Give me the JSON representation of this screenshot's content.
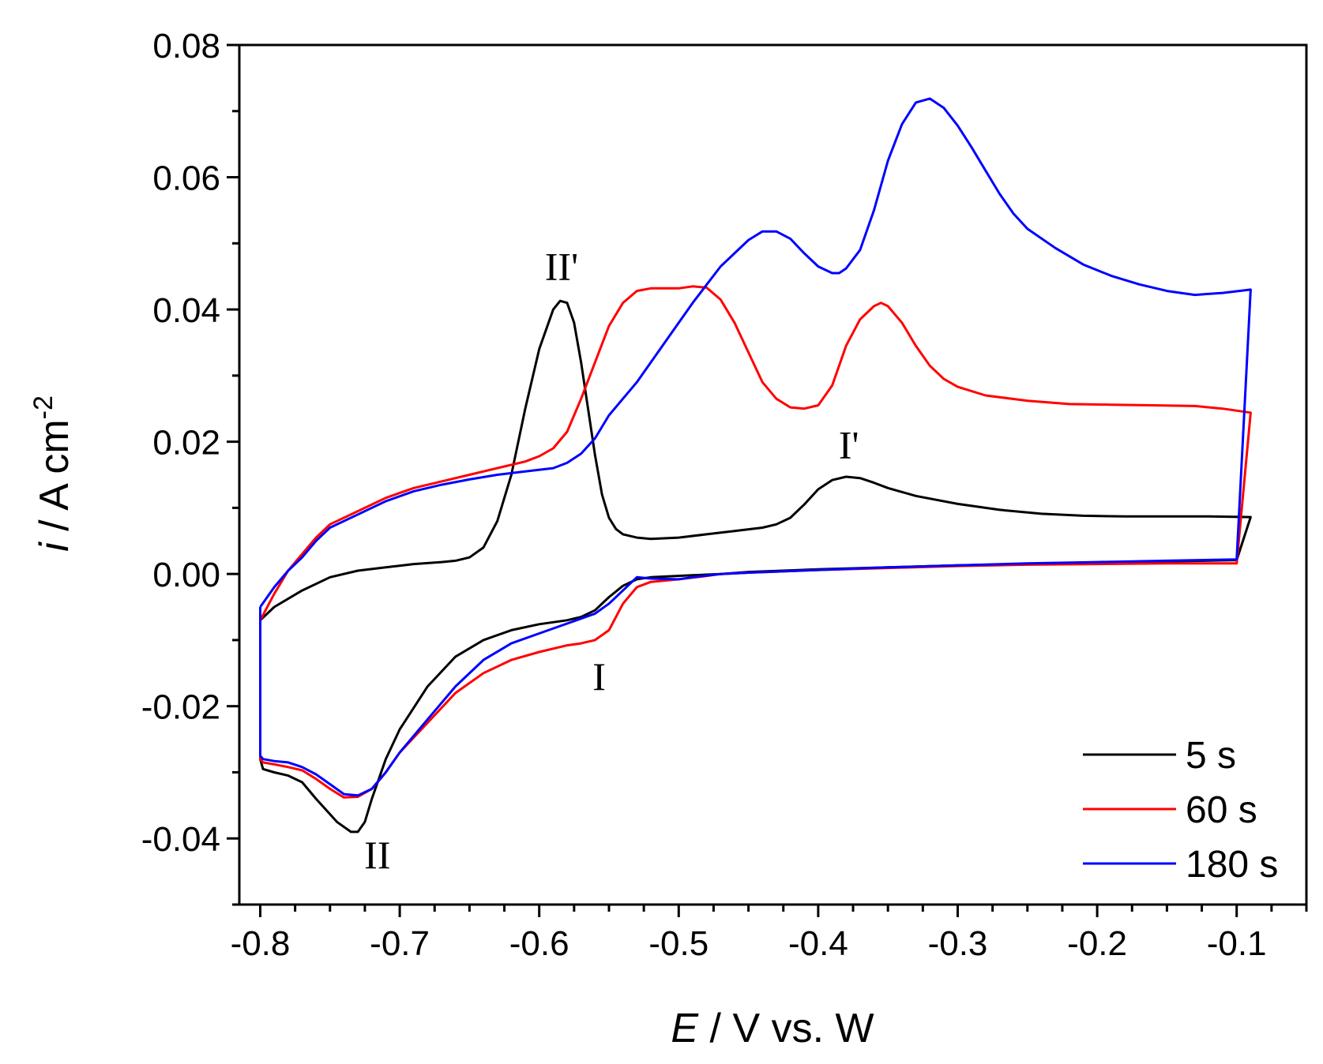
{
  "chart_data": {
    "type": "line",
    "xlabel": {
      "italic": "E",
      "rest": " / V vs. W"
    },
    "ylabel": {
      "italic": "i",
      "rest": " / A cm",
      "sup": "-2"
    },
    "xlim": [
      -0.815,
      -0.05
    ],
    "ylim": [
      -0.05,
      0.08
    ],
    "xticks": [
      -0.8,
      -0.7,
      -0.6,
      -0.5,
      -0.4,
      -0.3,
      -0.2,
      -0.1
    ],
    "xtick_labels": [
      "-0.8",
      "-0.7",
      "-0.6",
      "-0.5",
      "-0.4",
      "-0.3",
      "-0.2",
      "-0.1"
    ],
    "yticks": [
      -0.04,
      -0.02,
      0.0,
      0.02,
      0.04,
      0.06,
      0.08
    ],
    "ytick_labels": [
      "-0.04",
      "-0.02",
      "0.00",
      "0.02",
      "0.04",
      "0.06",
      "0.08"
    ],
    "x_minor_step": 0.025,
    "y_minor_step": 0.01,
    "legend_position": "bottom-right",
    "peak_annotations": [
      {
        "text": "II'",
        "x": -0.584,
        "y": 0.0445
      },
      {
        "text": "I'",
        "x": -0.378,
        "y": 0.0175
      },
      {
        "text": "I",
        "x": -0.557,
        "y": -0.0175
      },
      {
        "text": "II",
        "x": -0.716,
        "y": -0.0445
      }
    ],
    "series": [
      {
        "name": "5 s",
        "color": "#000000",
        "points": [
          [
            -0.8,
            -0.007
          ],
          [
            -0.79,
            -0.005
          ],
          [
            -0.77,
            -0.0025
          ],
          [
            -0.75,
            -0.0005
          ],
          [
            -0.73,
            0.0005
          ],
          [
            -0.71,
            0.001
          ],
          [
            -0.69,
            0.0015
          ],
          [
            -0.67,
            0.0018
          ],
          [
            -0.66,
            0.002
          ],
          [
            -0.65,
            0.0025
          ],
          [
            -0.64,
            0.004
          ],
          [
            -0.63,
            0.008
          ],
          [
            -0.62,
            0.015
          ],
          [
            -0.61,
            0.025
          ],
          [
            -0.6,
            0.034
          ],
          [
            -0.59,
            0.04
          ],
          [
            -0.585,
            0.0413
          ],
          [
            -0.58,
            0.041
          ],
          [
            -0.575,
            0.038
          ],
          [
            -0.57,
            0.032
          ],
          [
            -0.565,
            0.025
          ],
          [
            -0.56,
            0.018
          ],
          [
            -0.555,
            0.012
          ],
          [
            -0.55,
            0.0085
          ],
          [
            -0.545,
            0.0068
          ],
          [
            -0.54,
            0.006
          ],
          [
            -0.53,
            0.0055
          ],
          [
            -0.52,
            0.0053
          ],
          [
            -0.5,
            0.0055
          ],
          [
            -0.48,
            0.006
          ],
          [
            -0.46,
            0.0065
          ],
          [
            -0.44,
            0.007
          ],
          [
            -0.43,
            0.0075
          ],
          [
            -0.42,
            0.0085
          ],
          [
            -0.41,
            0.0105
          ],
          [
            -0.4,
            0.0128
          ],
          [
            -0.39,
            0.0142
          ],
          [
            -0.38,
            0.0147
          ],
          [
            -0.37,
            0.0145
          ],
          [
            -0.36,
            0.0138
          ],
          [
            -0.35,
            0.013
          ],
          [
            -0.33,
            0.0118
          ],
          [
            -0.3,
            0.0106
          ],
          [
            -0.27,
            0.0097
          ],
          [
            -0.24,
            0.0091
          ],
          [
            -0.21,
            0.0088
          ],
          [
            -0.18,
            0.0087
          ],
          [
            -0.15,
            0.0087
          ],
          [
            -0.12,
            0.0087
          ],
          [
            -0.09,
            0.0086
          ],
          [
            -0.09,
            0.0086
          ],
          [
            -0.1,
            0.0021
          ],
          [
            -0.15,
            0.0019
          ],
          [
            -0.2,
            0.0017
          ],
          [
            -0.25,
            0.0015
          ],
          [
            -0.3,
            0.0013
          ],
          [
            -0.35,
            0.001
          ],
          [
            -0.4,
            0.0007
          ],
          [
            -0.45,
            0.0003
          ],
          [
            -0.47,
            0.0
          ],
          [
            -0.49,
            -0.0002
          ],
          [
            -0.52,
            -0.0005
          ],
          [
            -0.53,
            -0.0008
          ],
          [
            -0.54,
            -0.0018
          ],
          [
            -0.55,
            -0.0035
          ],
          [
            -0.56,
            -0.0055
          ],
          [
            -0.57,
            -0.0065
          ],
          [
            -0.58,
            -0.007
          ],
          [
            -0.6,
            -0.0076
          ],
          [
            -0.62,
            -0.0085
          ],
          [
            -0.64,
            -0.01
          ],
          [
            -0.66,
            -0.0125
          ],
          [
            -0.68,
            -0.017
          ],
          [
            -0.7,
            -0.0235
          ],
          [
            -0.71,
            -0.028
          ],
          [
            -0.72,
            -0.034
          ],
          [
            -0.725,
            -0.0375
          ],
          [
            -0.73,
            -0.039
          ],
          [
            -0.735,
            -0.039
          ],
          [
            -0.745,
            -0.0375
          ],
          [
            -0.76,
            -0.034
          ],
          [
            -0.77,
            -0.0315
          ],
          [
            -0.78,
            -0.0305
          ],
          [
            -0.79,
            -0.03
          ],
          [
            -0.798,
            -0.0295
          ],
          [
            -0.8,
            -0.028
          ],
          [
            -0.8,
            -0.007
          ]
        ]
      },
      {
        "name": "60 s",
        "color": "#ff0000",
        "points": [
          [
            -0.8,
            -0.007
          ],
          [
            -0.79,
            -0.003
          ],
          [
            -0.78,
            0.0005
          ],
          [
            -0.77,
            0.003
          ],
          [
            -0.76,
            0.0055
          ],
          [
            -0.75,
            0.0075
          ],
          [
            -0.73,
            0.0095
          ],
          [
            -0.71,
            0.0115
          ],
          [
            -0.69,
            0.013
          ],
          [
            -0.67,
            0.014
          ],
          [
            -0.65,
            0.015
          ],
          [
            -0.63,
            0.016
          ],
          [
            -0.61,
            0.017
          ],
          [
            -0.6,
            0.0178
          ],
          [
            -0.59,
            0.019
          ],
          [
            -0.58,
            0.0215
          ],
          [
            -0.57,
            0.0265
          ],
          [
            -0.56,
            0.032
          ],
          [
            -0.55,
            0.0375
          ],
          [
            -0.54,
            0.041
          ],
          [
            -0.53,
            0.0428
          ],
          [
            -0.52,
            0.0432
          ],
          [
            -0.51,
            0.0432
          ],
          [
            -0.5,
            0.0432
          ],
          [
            -0.49,
            0.0435
          ],
          [
            -0.48,
            0.0433
          ],
          [
            -0.47,
            0.0415
          ],
          [
            -0.46,
            0.038
          ],
          [
            -0.45,
            0.0335
          ],
          [
            -0.44,
            0.029
          ],
          [
            -0.43,
            0.0265
          ],
          [
            -0.42,
            0.0252
          ],
          [
            -0.41,
            0.025
          ],
          [
            -0.4,
            0.0255
          ],
          [
            -0.39,
            0.0285
          ],
          [
            -0.38,
            0.0345
          ],
          [
            -0.37,
            0.0385
          ],
          [
            -0.36,
            0.0405
          ],
          [
            -0.355,
            0.041
          ],
          [
            -0.35,
            0.0405
          ],
          [
            -0.34,
            0.038
          ],
          [
            -0.33,
            0.0345
          ],
          [
            -0.32,
            0.0315
          ],
          [
            -0.31,
            0.0295
          ],
          [
            -0.3,
            0.0283
          ],
          [
            -0.28,
            0.027
          ],
          [
            -0.25,
            0.0262
          ],
          [
            -0.22,
            0.0257
          ],
          [
            -0.19,
            0.0256
          ],
          [
            -0.16,
            0.0255
          ],
          [
            -0.13,
            0.0254
          ],
          [
            -0.11,
            0.025
          ],
          [
            -0.09,
            0.0244
          ],
          [
            -0.09,
            0.0244
          ],
          [
            -0.1,
            0.0016
          ],
          [
            -0.15,
            0.0016
          ],
          [
            -0.2,
            0.0015
          ],
          [
            -0.25,
            0.0014
          ],
          [
            -0.3,
            0.0012
          ],
          [
            -0.35,
            0.0009
          ],
          [
            -0.4,
            0.0006
          ],
          [
            -0.45,
            0.0002
          ],
          [
            -0.47,
            0.0
          ],
          [
            -0.48,
            -0.0003
          ],
          [
            -0.5,
            -0.0008
          ],
          [
            -0.52,
            -0.0012
          ],
          [
            -0.53,
            -0.002
          ],
          [
            -0.54,
            -0.0045
          ],
          [
            -0.55,
            -0.0085
          ],
          [
            -0.56,
            -0.01
          ],
          [
            -0.57,
            -0.0105
          ],
          [
            -0.58,
            -0.0108
          ],
          [
            -0.6,
            -0.0118
          ],
          [
            -0.62,
            -0.013
          ],
          [
            -0.64,
            -0.015
          ],
          [
            -0.66,
            -0.018
          ],
          [
            -0.68,
            -0.0225
          ],
          [
            -0.7,
            -0.027
          ],
          [
            -0.71,
            -0.03
          ],
          [
            -0.72,
            -0.0325
          ],
          [
            -0.73,
            -0.0337
          ],
          [
            -0.74,
            -0.0338
          ],
          [
            -0.75,
            -0.0325
          ],
          [
            -0.76,
            -0.031
          ],
          [
            -0.77,
            -0.0297
          ],
          [
            -0.78,
            -0.0292
          ],
          [
            -0.79,
            -0.0288
          ],
          [
            -0.798,
            -0.0285
          ],
          [
            -0.8,
            -0.028
          ],
          [
            -0.8,
            -0.007
          ]
        ]
      },
      {
        "name": "180 s",
        "color": "#0000ff",
        "points": [
          [
            -0.8,
            -0.005
          ],
          [
            -0.79,
            -0.002
          ],
          [
            -0.78,
            0.0005
          ],
          [
            -0.77,
            0.0025
          ],
          [
            -0.76,
            0.005
          ],
          [
            -0.75,
            0.007
          ],
          [
            -0.73,
            0.009
          ],
          [
            -0.71,
            0.011
          ],
          [
            -0.69,
            0.0125
          ],
          [
            -0.67,
            0.0135
          ],
          [
            -0.65,
            0.0143
          ],
          [
            -0.63,
            0.015
          ],
          [
            -0.61,
            0.0155
          ],
          [
            -0.59,
            0.016
          ],
          [
            -0.58,
            0.0168
          ],
          [
            -0.57,
            0.0182
          ],
          [
            -0.56,
            0.0205
          ],
          [
            -0.55,
            0.024
          ],
          [
            -0.53,
            0.029
          ],
          [
            -0.51,
            0.035
          ],
          [
            -0.49,
            0.041
          ],
          [
            -0.47,
            0.0465
          ],
          [
            -0.45,
            0.0505
          ],
          [
            -0.44,
            0.0518
          ],
          [
            -0.43,
            0.0518
          ],
          [
            -0.42,
            0.0507
          ],
          [
            -0.41,
            0.0485
          ],
          [
            -0.4,
            0.0465
          ],
          [
            -0.39,
            0.0455
          ],
          [
            -0.385,
            0.0455
          ],
          [
            -0.38,
            0.0462
          ],
          [
            -0.37,
            0.049
          ],
          [
            -0.36,
            0.055
          ],
          [
            -0.35,
            0.0625
          ],
          [
            -0.34,
            0.068
          ],
          [
            -0.33,
            0.0713
          ],
          [
            -0.32,
            0.0719
          ],
          [
            -0.31,
            0.0705
          ],
          [
            -0.3,
            0.0678
          ],
          [
            -0.29,
            0.0645
          ],
          [
            -0.28,
            0.061
          ],
          [
            -0.27,
            0.0575
          ],
          [
            -0.26,
            0.0545
          ],
          [
            -0.25,
            0.0522
          ],
          [
            -0.23,
            0.0493
          ],
          [
            -0.21,
            0.0468
          ],
          [
            -0.19,
            0.0451
          ],
          [
            -0.17,
            0.0438
          ],
          [
            -0.15,
            0.0428
          ],
          [
            -0.13,
            0.0422
          ],
          [
            -0.11,
            0.0425
          ],
          [
            -0.09,
            0.043
          ],
          [
            -0.09,
            0.043
          ],
          [
            -0.1,
            0.0022
          ],
          [
            -0.15,
            0.002
          ],
          [
            -0.2,
            0.0018
          ],
          [
            -0.25,
            0.0016
          ],
          [
            -0.3,
            0.0013
          ],
          [
            -0.35,
            0.001
          ],
          [
            -0.4,
            0.0006
          ],
          [
            -0.45,
            0.0002
          ],
          [
            -0.47,
            0.0
          ],
          [
            -0.49,
            -0.0005
          ],
          [
            -0.5,
            -0.0008
          ],
          [
            -0.52,
            -0.0007
          ],
          [
            -0.53,
            -0.0005
          ],
          [
            -0.54,
            -0.0025
          ],
          [
            -0.55,
            -0.0045
          ],
          [
            -0.56,
            -0.006
          ],
          [
            -0.58,
            -0.0075
          ],
          [
            -0.6,
            -0.009
          ],
          [
            -0.62,
            -0.0105
          ],
          [
            -0.64,
            -0.013
          ],
          [
            -0.66,
            -0.017
          ],
          [
            -0.68,
            -0.022
          ],
          [
            -0.7,
            -0.027
          ],
          [
            -0.71,
            -0.03
          ],
          [
            -0.72,
            -0.0325
          ],
          [
            -0.73,
            -0.0335
          ],
          [
            -0.74,
            -0.0333
          ],
          [
            -0.75,
            -0.0318
          ],
          [
            -0.76,
            -0.0303
          ],
          [
            -0.77,
            -0.0292
          ],
          [
            -0.78,
            -0.0285
          ],
          [
            -0.79,
            -0.0283
          ],
          [
            -0.798,
            -0.028
          ],
          [
            -0.8,
            -0.0275
          ],
          [
            -0.8,
            -0.005
          ]
        ]
      }
    ]
  }
}
